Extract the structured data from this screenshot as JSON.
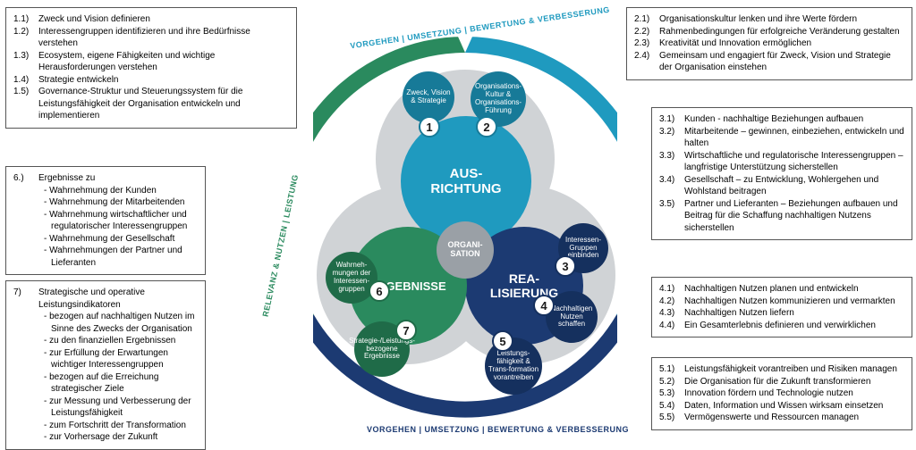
{
  "colors": {
    "ausrichtung": "#1f9abf",
    "realisierung": "#1c3a72",
    "ergebnisse": "#2a8a5e",
    "grey_bg": "#d0d3d6",
    "org_grey": "#9aa0a6",
    "box_border": "#555555"
  },
  "center_label": "ORGANI-\nSATION",
  "big": {
    "aus": "AUS-\nRICHTUNG",
    "rea": "REA-\nLISIERUNG",
    "erg": "ERGEBNISSE"
  },
  "small": {
    "c1": "Zweck, Vision & Strategie",
    "c2": "Organisations-Kultur & Organisations-Führung",
    "c3": "Interessen-Gruppen einbinden",
    "c4": "Nachhaltigen Nutzen schaffen",
    "c5": "Leistungs-fähigkeit & Trans-formation vorantreiben",
    "c6": "Wahrneh-mungen der Interessen-gruppen",
    "c7": "Strategie-/Leistungs-bezogene Ergebnisse"
  },
  "arc": {
    "top": "VORGEHEN  |  UMSETZUNG  |  BEWERTUNG & VERBESSERUNG",
    "right": "VORGEHEN  |  UMSETZUNG  |  BEWERTUNG & VERBESSERUNG",
    "left": "RELEVANZ & NUTZEN  |  LEISTUNG"
  },
  "boxes": {
    "b1": [
      {
        "n": "1.1)",
        "t": "Zweck und Vision definieren"
      },
      {
        "n": "1.2)",
        "t": "Interessengruppen identifizieren und ihre Bedürfnisse verstehen"
      },
      {
        "n": "1.3)",
        "t": "Ecosystem, eigene Fähigkeiten und wichtige Herausforderungen verstehen"
      },
      {
        "n": "1.4)",
        "t": "Strategie entwickeln"
      },
      {
        "n": "1.5)",
        "t": "Governance-Struktur und Steuerungssystem für die Leistungsfähigkeit der Organisation entwickeln und implementieren"
      }
    ],
    "b2": [
      {
        "n": "2.1)",
        "t": "Organisationskultur lenken und ihre Werte fördern"
      },
      {
        "n": "2.2)",
        "t": "Rahmenbedingungen für erfolgreiche Veränderung gestalten"
      },
      {
        "n": "2.3)",
        "t": "Kreativität und Innovation ermöglichen"
      },
      {
        "n": "2.4)",
        "t": "Gemeinsam und engagiert für Zweck, Vision und Strategie der Organisation einstehen"
      }
    ],
    "b3": [
      {
        "n": "3.1)",
        "t": "Kunden - nachhaltige Beziehungen aufbauen"
      },
      {
        "n": "3.2)",
        "t": "Mitarbeitende – gewinnen, einbeziehen, entwickeln und halten"
      },
      {
        "n": "3.3)",
        "t": "Wirtschaftliche und regulatorische Interessengruppen – langfristige Unterstützung sicherstellen"
      },
      {
        "n": "3.4)",
        "t": "Gesellschaft – zu Entwicklung, Wohlergehen und Wohlstand beitragen"
      },
      {
        "n": "3.5)",
        "t": "Partner und Lieferanten – Beziehungen aufbauen und Beitrag für die Schaffung nachhaltigen Nutzens sicherstellen"
      }
    ],
    "b4": [
      {
        "n": "4.1)",
        "t": "Nachhaltigen Nutzen planen und entwickeln"
      },
      {
        "n": "4.2)",
        "t": "Nachhaltigen Nutzen kommunizieren und vermarkten"
      },
      {
        "n": "4.3)",
        "t": "Nachhaltigen Nutzen liefern"
      },
      {
        "n": "4.4)",
        "t": "Ein Gesamterlebnis definieren und verwirklichen"
      }
    ],
    "b5": [
      {
        "n": "5.1)",
        "t": "Leistungsfähigkeit vorantreiben und Risiken managen"
      },
      {
        "n": "5.2)",
        "t": "Die Organisation für die Zukunft transformieren"
      },
      {
        "n": "5.3)",
        "t": "Innovation fördern und Technologie nutzen"
      },
      {
        "n": "5.4)",
        "t": "Daten, Information und Wissen wirksam einsetzen"
      },
      {
        "n": "5.5)",
        "t": "Vermögenswerte und Ressourcen managen"
      }
    ],
    "b6": {
      "head": {
        "n": "6.)",
        "t": "Ergebnisse zu"
      },
      "subs": [
        "- Wahrnehmung der Kunden",
        "- Wahrnehmung der Mitarbeitenden",
        "- Wahrnehmung wirtschaftlicher und regulatorischer Interessengruppen",
        "- Wahrnehmung der Gesellschaft",
        "- Wahrnehmungen der Partner und Lieferanten"
      ]
    },
    "b7": {
      "head": {
        "n": "7)",
        "t": "Strategische und operative Leistungsindikatoren"
      },
      "subs": [
        "- bezogen auf nachhaltigen Nutzen im Sinne des Zwecks der Organisation",
        "- zu den finanziellen Ergebnissen",
        "- zur Erfüllung der Erwartungen wichtiger Interessengruppen",
        "- bezogen auf die Erreichung strategischer Ziele",
        "- zur Messung und Verbesserung der Leistungsfähigkeit",
        "- zum Fortschritt der Transformation",
        "- zur Vorhersage der Zukunft"
      ]
    }
  }
}
